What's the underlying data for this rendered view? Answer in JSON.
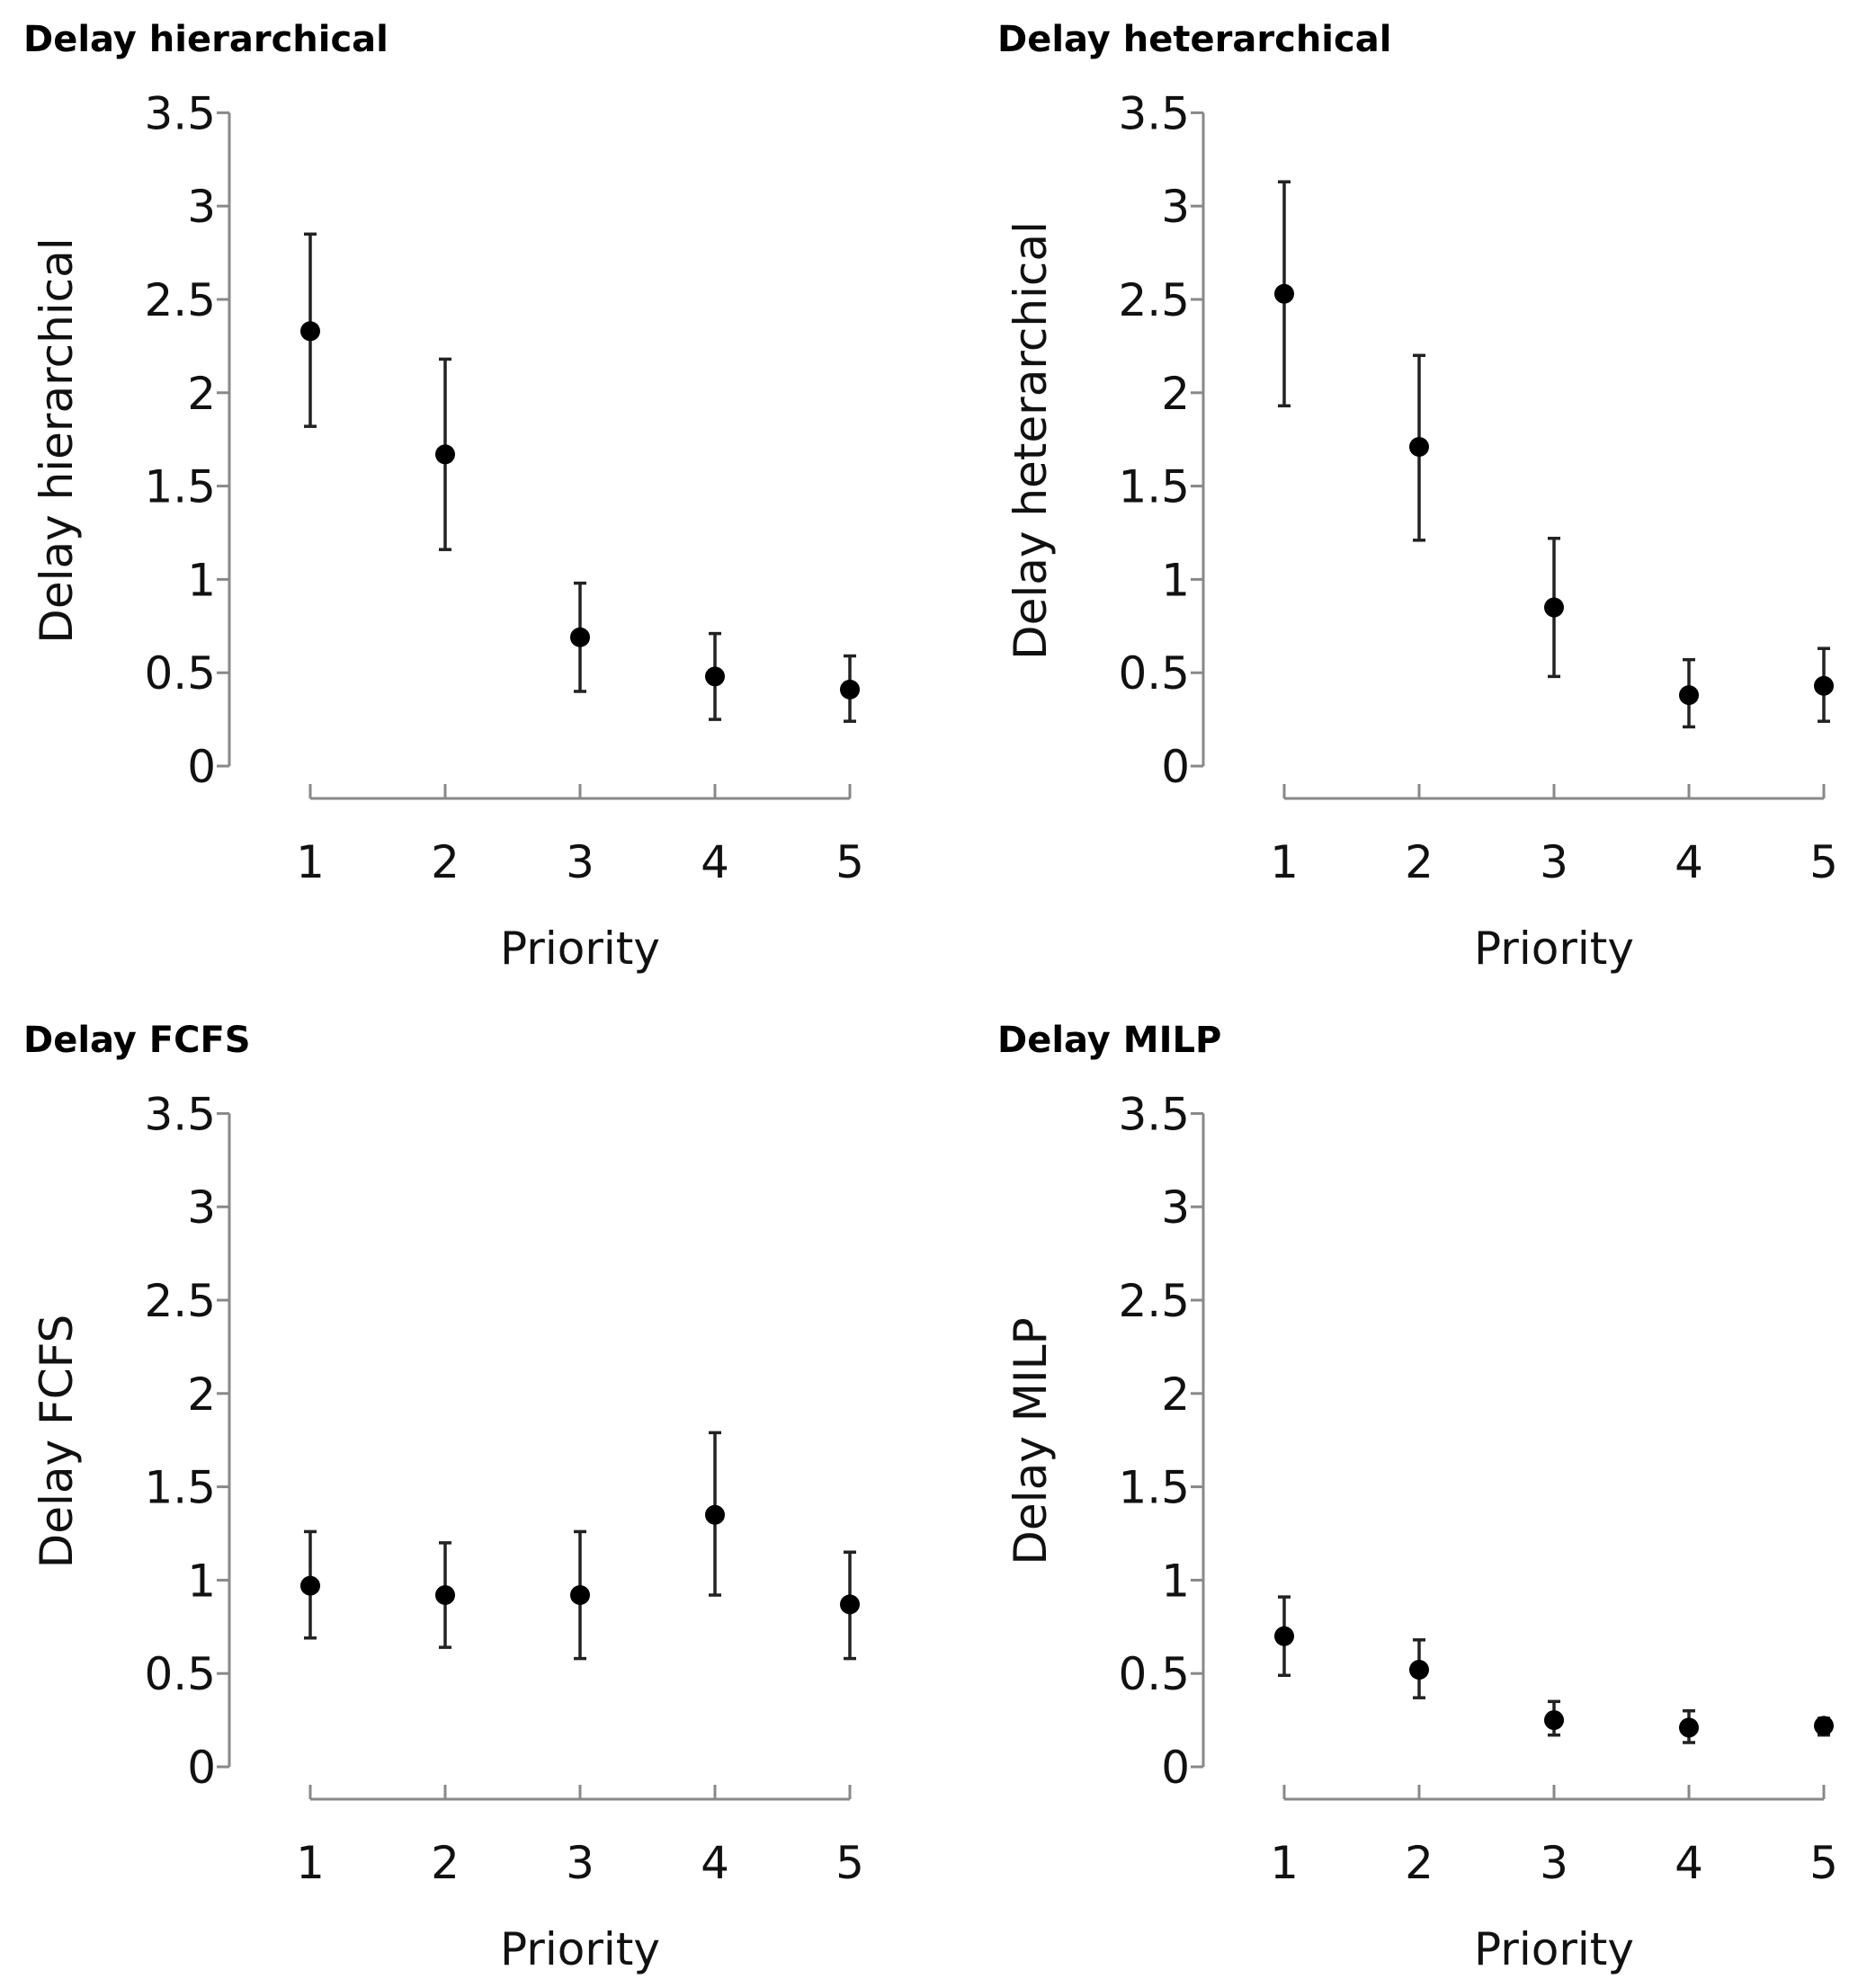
{
  "chart_data": [
    {
      "type": "scatter",
      "title": "Delay hierarchical",
      "xlabel": "Priority",
      "ylabel": "Delay hierarchical",
      "categories": [
        "1",
        "2",
        "3",
        "4",
        "5"
      ],
      "yticks": [
        "0",
        "0.5",
        "1",
        "1.5",
        "2",
        "2.5",
        "3",
        "3.5"
      ],
      "ylim": [
        0,
        3.5
      ],
      "values": [
        2.33,
        1.67,
        0.69,
        0.48,
        0.41
      ],
      "error_low": [
        1.82,
        1.16,
        0.4,
        0.25,
        0.24
      ],
      "error_high": [
        2.85,
        2.18,
        0.98,
        0.71,
        0.59
      ],
      "grid": false,
      "legend": "none"
    },
    {
      "type": "scatter",
      "title": "Delay heterarchical",
      "xlabel": "Priority",
      "ylabel": "Delay heterarchical",
      "categories": [
        "1",
        "2",
        "3",
        "4",
        "5"
      ],
      "yticks": [
        "0",
        "0.5",
        "1",
        "1.5",
        "2",
        "2.5",
        "3",
        "3.5"
      ],
      "ylim": [
        0,
        3.5
      ],
      "values": [
        2.53,
        1.71,
        0.85,
        0.38,
        0.43
      ],
      "error_low": [
        1.93,
        1.21,
        0.48,
        0.21,
        0.24
      ],
      "error_high": [
        3.13,
        2.2,
        1.22,
        0.57,
        0.63
      ],
      "grid": false,
      "legend": "none"
    },
    {
      "type": "scatter",
      "title": "Delay FCFS",
      "xlabel": "Priority",
      "ylabel": "Delay FCFS",
      "categories": [
        "1",
        "2",
        "3",
        "4",
        "5"
      ],
      "yticks": [
        "0",
        "0.5",
        "1",
        "1.5",
        "2",
        "2.5",
        "3",
        "3.5"
      ],
      "ylim": [
        0,
        3.5
      ],
      "values": [
        0.97,
        0.92,
        0.92,
        1.35,
        0.87
      ],
      "error_low": [
        0.69,
        0.64,
        0.58,
        0.92,
        0.58
      ],
      "error_high": [
        1.26,
        1.2,
        1.26,
        1.79,
        1.15
      ],
      "grid": false,
      "legend": "none"
    },
    {
      "type": "scatter",
      "title": "Delay MILP",
      "xlabel": "Priority",
      "ylabel": "Delay MILP",
      "categories": [
        "1",
        "2",
        "3",
        "4",
        "5"
      ],
      "yticks": [
        "0",
        "0.5",
        "1",
        "1.5",
        "2",
        "2.5",
        "3",
        "3.5"
      ],
      "ylim": [
        0,
        3.5
      ],
      "values": [
        0.7,
        0.52,
        0.25,
        0.21,
        0.22
      ],
      "error_low": [
        0.49,
        0.37,
        0.17,
        0.13,
        0.17
      ],
      "error_high": [
        0.91,
        0.68,
        0.35,
        0.3,
        0.26
      ],
      "grid": false,
      "legend": "none"
    }
  ]
}
